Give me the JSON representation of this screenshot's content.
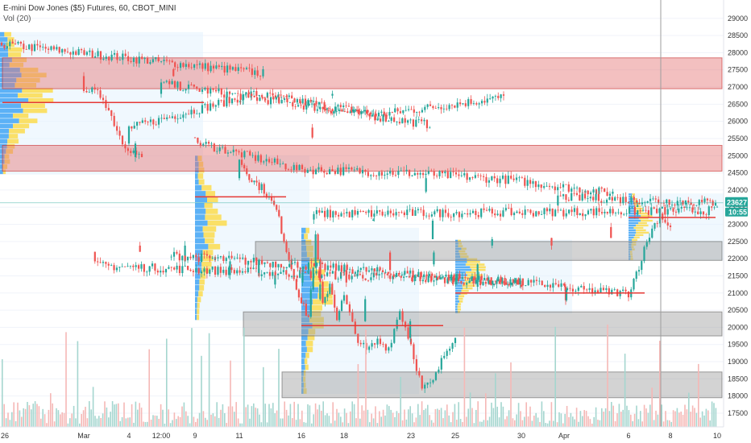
{
  "legend": {
    "title": "E-mini Dow Jones ($5) Futures, 60, CBOT_MINI",
    "volume": "Vol (20)"
  },
  "price_tag": {
    "price": "23627",
    "countdown": "10:55",
    "color": "#26a69a"
  },
  "chart_data": {
    "type": "candlestick",
    "x_ticks": [
      "26",
      "Mar",
      "4",
      "12:00",
      "9",
      "11",
      "16",
      "18",
      "23",
      "25",
      "30",
      "Apr",
      "6",
      "8",
      "10"
    ],
    "y_ticks": [
      17500,
      18000,
      18500,
      19000,
      19500,
      20000,
      20500,
      21000,
      21500,
      22000,
      22500,
      23000,
      23500,
      24000,
      24500,
      25000,
      25500,
      26000,
      26500,
      27000,
      27500,
      28000,
      28500,
      29000
    ],
    "ylim": [
      17100,
      29300
    ],
    "last_price": 23627,
    "colors": {
      "up": "#26a69a",
      "down": "#ef5350",
      "vol_up": "#a5d6cf",
      "vol_down": "#f5b8b6",
      "resistance_zone": "#e57373",
      "support_zone": "#9e9e9e",
      "poc_line": "#e53935",
      "profile_up": "#42a5f5",
      "profile_down": "#fdd835"
    },
    "price_path": [
      [
        "26",
        28250
      ],
      [
        "26",
        27400
      ],
      [
        "Mar",
        27000
      ],
      [
        "Mar",
        26700
      ],
      [
        "Mar",
        25400
      ],
      [
        "Mar",
        24900
      ],
      [
        "4",
        25800
      ],
      [
        "4",
        26800
      ],
      [
        "4",
        26200
      ],
      [
        "4",
        26700
      ],
      [
        "12:00",
        27100
      ],
      [
        "12:00",
        26500
      ],
      [
        "12:00",
        25900
      ],
      [
        "9",
        25400
      ],
      [
        "9",
        24600
      ],
      [
        "9",
        24500
      ],
      [
        "9",
        24300
      ],
      [
        "9",
        23900
      ],
      [
        "11",
        24900
      ],
      [
        "11",
        24300
      ],
      [
        "11",
        24000
      ],
      [
        "11",
        23400
      ],
      [
        "11",
        22000
      ],
      [
        "16",
        20700
      ],
      [
        "16",
        20300
      ],
      [
        "16",
        22600
      ],
      [
        "16",
        20600
      ],
      [
        "16",
        21300
      ],
      [
        "16",
        20300
      ],
      [
        "18",
        20900
      ],
      [
        "18",
        19800
      ],
      [
        "18",
        19300
      ],
      [
        "18",
        19600
      ],
      [
        "18",
        19400
      ],
      [
        "18",
        20500
      ],
      [
        "23",
        19500
      ],
      [
        "23",
        18200
      ],
      [
        "23",
        18400
      ],
      [
        "23",
        19200
      ],
      [
        "25",
        19800
      ],
      [
        "25",
        20800
      ],
      [
        "25",
        21600
      ],
      [
        "25",
        22500
      ],
      [
        "25",
        21800
      ],
      [
        "30",
        21300
      ],
      [
        "30",
        22200
      ],
      [
        "30",
        21200
      ],
      [
        "30",
        21900
      ],
      [
        "30",
        22100
      ],
      [
        "Apr",
        21200
      ],
      [
        "Apr",
        20900
      ],
      [
        "Apr",
        21100
      ],
      [
        "6",
        21000
      ],
      [
        "6",
        21800
      ],
      [
        "6",
        22700
      ],
      [
        "6",
        23300
      ],
      [
        "8",
        22900
      ],
      [
        "8",
        22300
      ],
      [
        "8",
        23000
      ],
      [
        "8",
        23300
      ],
      [
        "10",
        23400
      ],
      [
        "10",
        23800
      ],
      [
        "10",
        23627
      ]
    ],
    "zones": [
      {
        "kind": "resistance",
        "from": 26950,
        "to": 27850,
        "start": "26"
      },
      {
        "kind": "resistance",
        "from": 24550,
        "to": 25300,
        "start": "26"
      },
      {
        "kind": "support",
        "from": 21950,
        "to": 22500,
        "start": "11"
      },
      {
        "kind": "support",
        "from": 19750,
        "to": 20450,
        "start": "11"
      },
      {
        "kind": "support",
        "from": 17950,
        "to": 18700,
        "start": "16"
      }
    ],
    "poc_lines": [
      {
        "price": 26550,
        "from": "26",
        "to": "9"
      },
      {
        "price": 23800,
        "from": "9",
        "to": "16"
      },
      {
        "price": 20050,
        "from": "16",
        "to": "23"
      },
      {
        "price": 21000,
        "from": "25",
        "to": "6"
      },
      {
        "price": 23200,
        "from": "6",
        "to": "10"
      }
    ],
    "profile_ranges": [
      {
        "from": "26",
        "to": "9",
        "low": 24450,
        "high": 28600
      },
      {
        "from": "9",
        "to": "16",
        "low": 20200,
        "high": 25000
      },
      {
        "from": "16",
        "to": "23",
        "low": 18050,
        "high": 22900
      },
      {
        "from": "25",
        "to": "Apr",
        "low": 20400,
        "high": 22550
      },
      {
        "from": "6",
        "to": "10",
        "low": 21950,
        "high": 23900
      }
    ],
    "crosshair_x": "8"
  }
}
